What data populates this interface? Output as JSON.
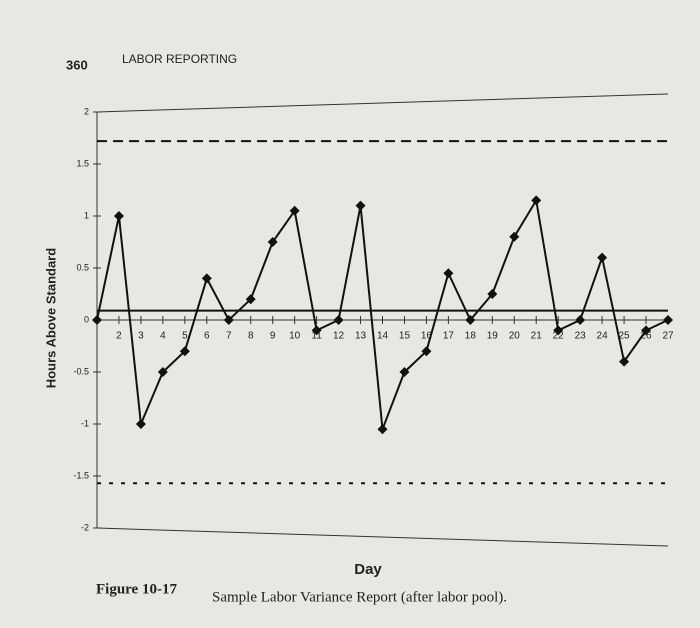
{
  "page_number": "360",
  "running_head": "LABOR REPORTING",
  "chart_data": {
    "type": "line",
    "y_label": "Hours Above Standard",
    "x_label": "Day",
    "x": [
      1,
      2,
      3,
      4,
      5,
      6,
      7,
      8,
      9,
      10,
      11,
      12,
      13,
      14,
      15,
      16,
      17,
      18,
      19,
      20,
      21,
      22,
      23,
      24,
      25,
      26,
      27
    ],
    "values": [
      0,
      1,
      -1,
      -0.5,
      -0.3,
      0.4,
      0,
      0.2,
      0.75,
      1.05,
      -0.1,
      0,
      1.1,
      -1.05,
      -0.5,
      -0.3,
      0.45,
      0,
      0.25,
      0.8,
      1.15,
      -0.1,
      0,
      0.6,
      -0.4,
      -0.1,
      0
    ],
    "color": "#111111",
    "xlim": [
      1,
      27
    ],
    "xticks": [
      2,
      3,
      4,
      5,
      6,
      7,
      8,
      9,
      10,
      11,
      12,
      13,
      14,
      15,
      16,
      17,
      18,
      19,
      20,
      21,
      22,
      23,
      24,
      25,
      26,
      27
    ],
    "ylim": [
      -2,
      2
    ],
    "yticks": [
      2,
      1.5,
      1,
      0.5,
      0,
      -0.5,
      -1,
      -1.5,
      -2
    ],
    "reference_lines": [
      {
        "value": 1.72,
        "style": "dashed"
      },
      {
        "value": 0.09,
        "style": "solid"
      },
      {
        "value": -1.57,
        "style": "dotted"
      }
    ]
  },
  "figure_label": "Figure 10-17",
  "caption": "Sample Labor Variance Report (after labor pool)."
}
